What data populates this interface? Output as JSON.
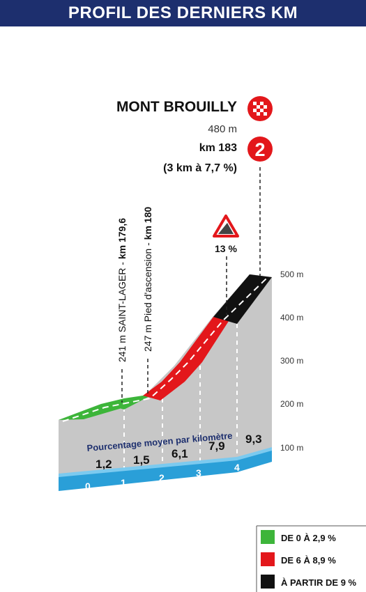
{
  "header": {
    "title": "PROFIL DES DERNIERS KM"
  },
  "summit": {
    "name": "MONT BROUILLY",
    "altitude": "480 m",
    "km": "km 183",
    "climb": "(3 km à 7,7 %)",
    "category": "2"
  },
  "points": [
    {
      "label_left": "241 m SAINT-LAGER - ",
      "label_bold": "km 179,6"
    },
    {
      "label_left": "247 m Pied d'ascension - ",
      "label_bold": "km 180"
    }
  ],
  "max_gradient": "13 %",
  "altitude_axis": [
    "500 m",
    "400 m",
    "300 m",
    "200 m",
    "100 m"
  ],
  "gradient_caption": "Pourcentage moyen par kilomètre",
  "segment_gradients": [
    "1,2",
    "1,5",
    "6,1",
    "7,9",
    "9,3"
  ],
  "km_markers": [
    "0",
    "1",
    "2",
    "3",
    "4"
  ],
  "legend": [
    {
      "label": "DE 0 À 2,9 %",
      "color": "#3db53a"
    },
    {
      "label": "DE 6 À 8,9 %",
      "color": "#e3171b"
    },
    {
      "label": "À PARTIR DE 9 %",
      "color": "#111111"
    }
  ],
  "colors": {
    "header": "#1d2f6e",
    "blue_band": "#2a9fd8",
    "red": "#e3171b",
    "black": "#111111",
    "green": "#3db53a",
    "wall": "#c8c8c8"
  }
}
